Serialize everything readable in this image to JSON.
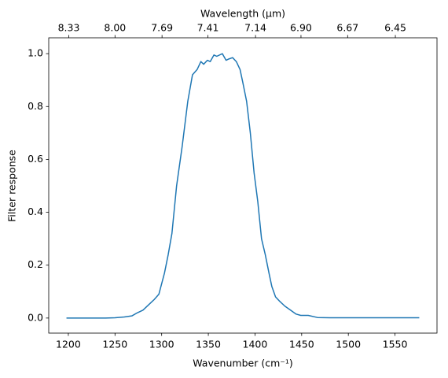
{
  "chart_data": {
    "type": "line",
    "x_label": "Wavenumber (cm⁻¹)",
    "x2_label": "Wavelength (μm)",
    "y_label": "Filter response",
    "xlim": [
      1179,
      1595
    ],
    "ylim": [
      -0.057,
      1.06
    ],
    "xticks": [
      1200,
      1250,
      1300,
      1350,
      1400,
      1450,
      1500,
      1550
    ],
    "x2ticks": [
      8.33,
      {
        "value": 8,
        "label": "8.00"
      },
      7.69,
      7.41,
      7.14,
      {
        "value": 6.9,
        "label": "6.90"
      },
      6.67,
      6.45
    ],
    "yticks": [
      {
        "value": 0,
        "label": "0.0"
      },
      0.2,
      0.4,
      0.6,
      0.8,
      {
        "value": 1,
        "label": "1.0"
      }
    ],
    "series": [
      {
        "color": "#1f77b4",
        "x": [
          1198,
          1210,
          1220,
          1230,
          1240,
          1250,
          1260,
          1268,
          1274,
          1280,
          1286,
          1292,
          1297,
          1303,
          1307,
          1311,
          1316,
          1322,
          1328,
          1333,
          1338,
          1342,
          1345,
          1349,
          1352,
          1356,
          1359,
          1365,
          1369,
          1372,
          1376,
          1380,
          1384,
          1387,
          1391,
          1395,
          1399,
          1403,
          1407,
          1411,
          1415,
          1418,
          1422,
          1426,
          1432,
          1438,
          1444,
          1449,
          1457,
          1467,
          1480,
          1500,
          1520,
          1540,
          1560,
          1576
        ],
        "values": [
          0,
          0,
          0,
          0,
          0,
          0.001,
          0.004,
          0.008,
          0.02,
          0.03,
          0.05,
          0.07,
          0.09,
          0.17,
          0.24,
          0.32,
          0.5,
          0.65,
          0.82,
          0.92,
          0.94,
          0.97,
          0.96,
          0.975,
          0.97,
          0.995,
          0.99,
          1.0,
          0.975,
          0.98,
          0.985,
          0.97,
          0.94,
          0.89,
          0.82,
          0.7,
          0.55,
          0.44,
          0.3,
          0.24,
          0.17,
          0.12,
          0.08,
          0.065,
          0.045,
          0.03,
          0.015,
          0.01,
          0.01,
          0.002,
          0.001,
          0.001,
          0.001,
          0.001,
          0.001,
          0.001
        ]
      }
    ]
  }
}
